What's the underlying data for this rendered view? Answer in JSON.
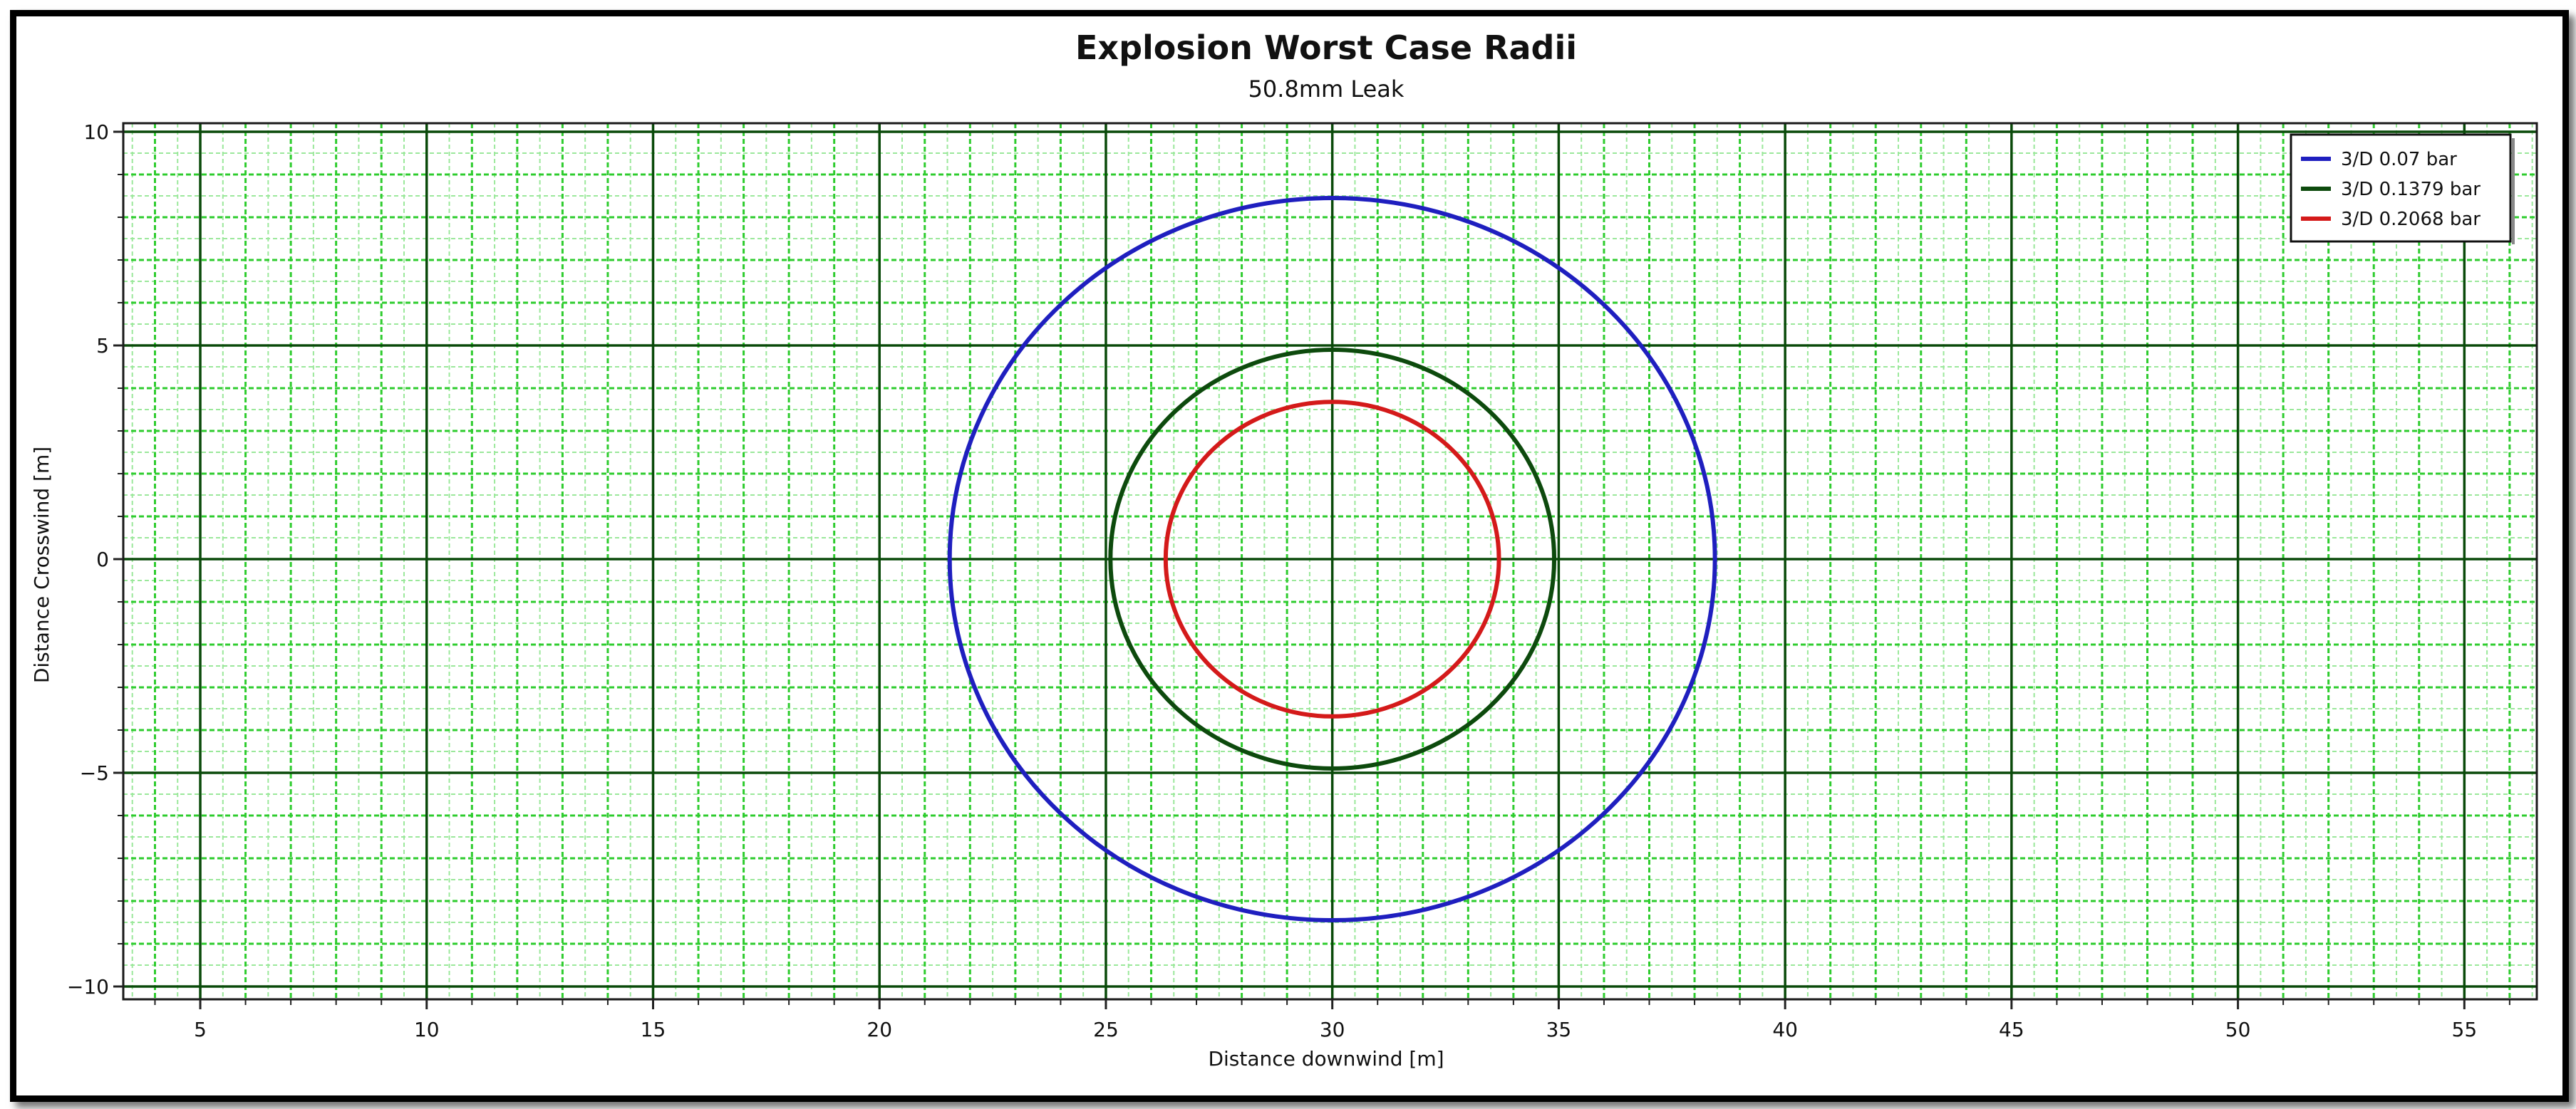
{
  "chart_data": {
    "type": "line",
    "title": "Explosion Worst Case Radii",
    "subtitle": "50.8mm Leak",
    "xlabel": "Distance downwind [m]",
    "ylabel": "Distance Crosswind [m]",
    "xlim": [
      3.3,
      56.6
    ],
    "ylim": [
      -10.3,
      10.2
    ],
    "xticks": [
      5,
      10,
      15,
      20,
      25,
      30,
      35,
      40,
      45,
      50,
      55
    ],
    "yticks": [
      10,
      5,
      0,
      -5,
      -10
    ],
    "grid": true,
    "legend_position": "top-right",
    "series": [
      {
        "name": "3/D 0.07 bar",
        "color": "#1f1fbf",
        "center_x": 30.0,
        "center_y": 0,
        "radius": 8.45
      },
      {
        "name": "3/D 0.1379 bar",
        "color": "#0d4a0d",
        "center_x": 30.0,
        "center_y": 0,
        "radius": 4.9
      },
      {
        "name": "3/D 0.2068 bar",
        "color": "#d41a1a",
        "center_x": 30.0,
        "center_y": 0,
        "radius": 3.68
      }
    ],
    "colors": {
      "grid_major": "#0a4a0a",
      "grid_minor": "#2ecc2e",
      "grid_fine": "#9be89b"
    }
  }
}
